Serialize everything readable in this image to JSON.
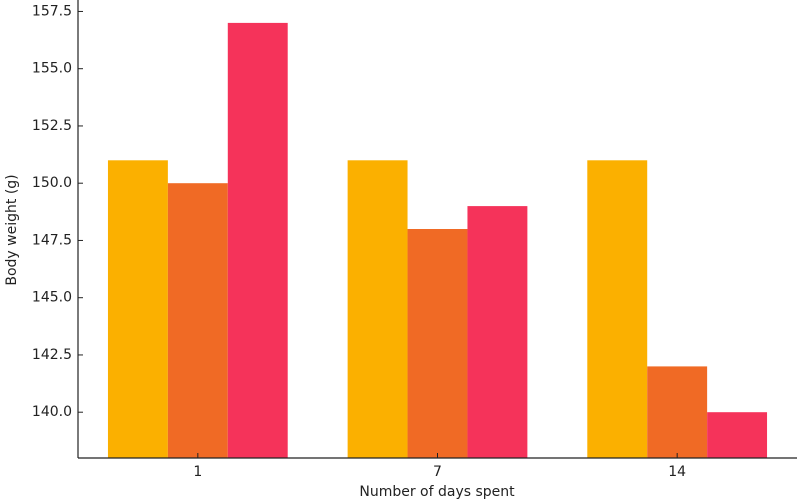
{
  "chart_data": {
    "type": "bar",
    "x_label": "Number of days spent",
    "y_label": "Body weight (g)",
    "categories": [
      "1",
      "7",
      "14"
    ],
    "series": [
      {
        "color": "#fbb000",
        "values": [
          151,
          151,
          151
        ]
      },
      {
        "color": "#f06a25",
        "values": [
          150,
          148,
          142
        ]
      },
      {
        "color": "#f5335a",
        "values": [
          157,
          149,
          140
        ]
      }
    ],
    "ylim": [
      138,
      158
    ],
    "yticks": [
      {
        "value": 140,
        "label": "140.0"
      },
      {
        "value": 142.5,
        "label": "142.5"
      },
      {
        "value": 145,
        "label": "145.0"
      },
      {
        "value": 147.5,
        "label": "147.5"
      },
      {
        "value": 150,
        "label": "150.0"
      },
      {
        "value": 152.5,
        "label": "152.5"
      },
      {
        "value": 155,
        "label": "155.0"
      },
      {
        "value": 157.5,
        "label": "157.5"
      }
    ]
  }
}
